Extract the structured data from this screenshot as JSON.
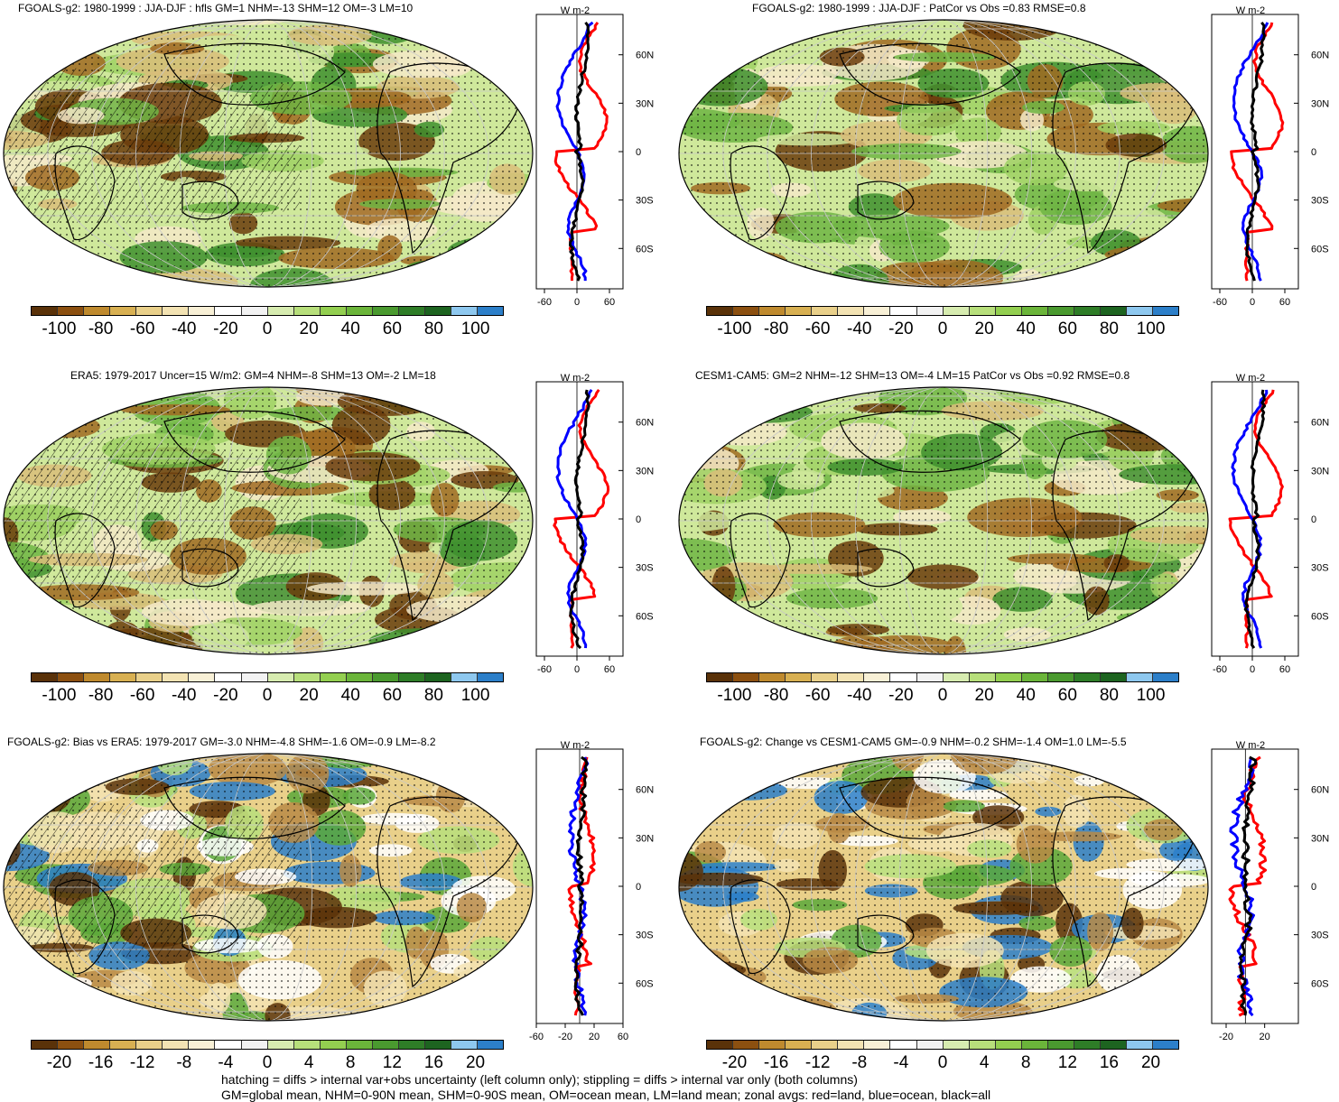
{
  "panels": [
    {
      "title": "FGOALS-g2: 1980-1999 : JJA-DJF : hfls GM=1 NHM=-13 SHM=12 OM=-3 LM=10",
      "hatch": true,
      "diff": false,
      "xlabels": [
        "-60",
        "0",
        "60"
      ],
      "xvals": [
        -60,
        0,
        60
      ],
      "xrange": [
        -75,
        85
      ]
    },
    {
      "title": "FGOALS-g2: 1980-1999 : JJA-DJF : PatCor vs Obs =0.83 RMSE=0.8",
      "hatch": false,
      "diff": false,
      "xlabels": [
        "-60",
        "0",
        "60"
      ],
      "xvals": [
        -60,
        0,
        60
      ],
      "xrange": [
        -75,
        85
      ]
    },
    {
      "title": "ERA5: 1979-2017 Uncer=15 W/m2: GM=4 NHM=-8 SHM=13 OM=-2 LM=18",
      "hatch": true,
      "diff": false,
      "xlabels": [
        "-60",
        "0",
        "60"
      ],
      "xvals": [
        -60,
        0,
        60
      ],
      "xrange": [
        -75,
        85
      ]
    },
    {
      "title": "CESM1-CAM5: GM=2 NHM=-12 SHM=13 OM=-4 LM=15 PatCor vs Obs =0.92 RMSE=0.8",
      "hatch": false,
      "diff": false,
      "xlabels": [
        "-60",
        "0",
        "60"
      ],
      "xvals": [
        -60,
        0,
        60
      ],
      "xrange": [
        -75,
        85
      ]
    },
    {
      "title": "FGOALS-g2: Bias vs ERA5: 1979-2017 GM=-3.0 NHM=-4.8 SHM=-1.6 OM=-0.9 LM=-8.2",
      "hatch": true,
      "diff": true,
      "xlabels": [
        "-60",
        "-20",
        "20",
        "60"
      ],
      "xvals": [
        -60,
        -20,
        20,
        60
      ],
      "xrange": [
        -60,
        60
      ]
    },
    {
      "title": "FGOALS-g2: Change vs CESM1-CAM5 GM=-0.9 NHM=-0.2 SHM=-1.4 OM=1.0 LM=-5.5",
      "hatch": false,
      "diff": true,
      "xlabels": [
        "-20",
        "20"
      ],
      "xvals": [
        -20,
        20
      ],
      "xrange": [
        -35,
        55
      ]
    }
  ],
  "zonal": {
    "units": "W m-2",
    "lat_labels": [
      "60N",
      "30N",
      "0",
      "30S",
      "60S"
    ],
    "lat_values": [
      60,
      30,
      0,
      -30,
      -60
    ],
    "line_colors": {
      "land": "#ff0000",
      "ocean": "#0000ff",
      "all": "#000000"
    }
  },
  "colorbars": {
    "abs": {
      "labels": [
        "-100",
        "-80",
        "-60",
        "-40",
        "-20",
        "0",
        "20",
        "40",
        "60",
        "80",
        "100"
      ]
    },
    "diff": {
      "labels": [
        "-20",
        "-16",
        "-12",
        "-8",
        "-4",
        "0",
        "4",
        "8",
        "12",
        "16",
        "20"
      ]
    },
    "colors": [
      "#5a3209",
      "#8c5010",
      "#bf8a2e",
      "#d8b052",
      "#e9d08a",
      "#f3e3b3",
      "#f8f0d6",
      "#ffffff",
      "#f2f2f2",
      "#d7ecb0",
      "#b7df7b",
      "#93cf50",
      "#6bb53a",
      "#4a9a2f",
      "#2e7d27",
      "#1d6420",
      "#8ec8ef",
      "#2c7fc9"
    ]
  },
  "footer": {
    "line1": "hatching = diffs > internal var+obs uncertainty (left column only); stippling = diffs > internal var only (both columns)",
    "line2": "GM=global mean, NHM=0-90N mean, SHM=0-90S mean, OM=ocean mean, LM=land mean; zonal avgs: red=land, blue=ocean, black=all"
  }
}
